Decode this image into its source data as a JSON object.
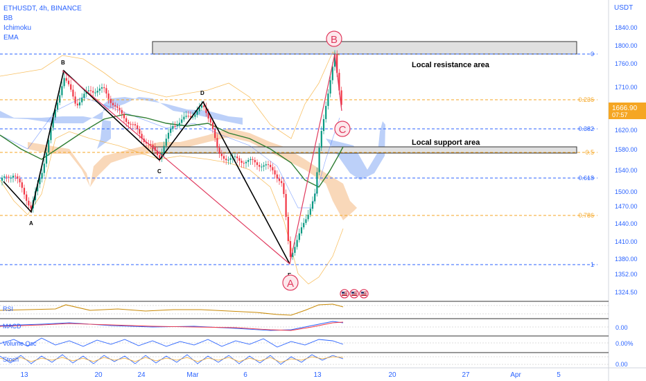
{
  "header": {
    "symbol": "ETHUSDT, 4h, BINANCE",
    "indicators": [
      "BB",
      "Ichimoku",
      "EMA"
    ]
  },
  "price_axis": {
    "currency": "USDT",
    "ticks": [
      "1840.00",
      "1800.00",
      "1760.00",
      "1710.00",
      "1620.00",
      "1580.00",
      "1540.00",
      "1500.00",
      "1470.00",
      "1440.00",
      "1410.00",
      "1380.00",
      "1352.00",
      "1324.50"
    ],
    "current_price": "1666.90",
    "countdown": "07:57"
  },
  "fib_levels": [
    {
      "label": "0",
      "color": "#2962ff"
    },
    {
      "label": "0.236",
      "color": "#f5a623"
    },
    {
      "label": "0.382",
      "color": "#2962ff"
    },
    {
      "label": "0.5",
      "color": "#f5a623"
    },
    {
      "label": "0.618",
      "color": "#2962ff"
    },
    {
      "label": "0.786",
      "color": "#f5a623"
    },
    {
      "label": "1",
      "color": "#2962ff"
    }
  ],
  "annotations": {
    "resistance": "Local resistance area",
    "support": "Local support area",
    "wave_labels": [
      "A",
      "B",
      "C",
      "D",
      "E"
    ],
    "circle_labels": [
      "B",
      "C",
      "A"
    ]
  },
  "time_axis": [
    "13",
    "20",
    "24",
    "Mar",
    "6",
    "13",
    "20",
    "27",
    "Apr",
    "5"
  ],
  "panes": [
    {
      "name": "RSI",
      "value": ""
    },
    {
      "name": "MACD",
      "value": "0.00"
    },
    {
      "name": "Volume Osc",
      "value": "0.00%"
    },
    {
      "name": "Stoch",
      "value": "0.00"
    }
  ],
  "colors": {
    "accent": "#2962ff",
    "bear": "#f23645",
    "bull": "#089981",
    "fib_orange": "#f5a623",
    "ema": "#2e7d32"
  }
}
